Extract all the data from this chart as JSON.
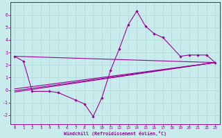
{
  "xlabel": "Windchill (Refroidissement éolien,°C)",
  "background_color": "#c8ecec",
  "grid_color": "#b0d8d8",
  "line_color": "#990099",
  "xlim": [
    -0.5,
    23.5
  ],
  "ylim": [
    -2.7,
    7.0
  ],
  "xticks": [
    0,
    1,
    2,
    3,
    4,
    5,
    6,
    7,
    8,
    9,
    10,
    11,
    12,
    13,
    14,
    15,
    16,
    17,
    18,
    19,
    20,
    21,
    22,
    23
  ],
  "yticks": [
    -2,
    -1,
    0,
    1,
    2,
    3,
    4,
    5,
    6
  ],
  "main_series_x": [
    0,
    1,
    2,
    4,
    5,
    7,
    8,
    9,
    10,
    11,
    12,
    13,
    14,
    15,
    16,
    17,
    19,
    20,
    21,
    22,
    23
  ],
  "main_series_y": [
    2.7,
    2.3,
    -0.1,
    -0.1,
    -0.2,
    -0.8,
    -1.1,
    -2.1,
    -0.6,
    1.6,
    3.3,
    5.2,
    6.3,
    5.1,
    4.5,
    4.2,
    2.7,
    2.8,
    2.8,
    2.8,
    2.2
  ],
  "trend_lines": [
    {
      "x1": 0,
      "y1": 2.7,
      "x2": 23,
      "y2": 2.2
    },
    {
      "x1": 0,
      "y1": -0.15,
      "x2": 23,
      "y2": 2.2
    },
    {
      "x1": 0,
      "y1": -0.05,
      "x2": 23,
      "y2": 2.2
    },
    {
      "x1": 0,
      "y1": 0.1,
      "x2": 23,
      "y2": 2.2
    }
  ]
}
